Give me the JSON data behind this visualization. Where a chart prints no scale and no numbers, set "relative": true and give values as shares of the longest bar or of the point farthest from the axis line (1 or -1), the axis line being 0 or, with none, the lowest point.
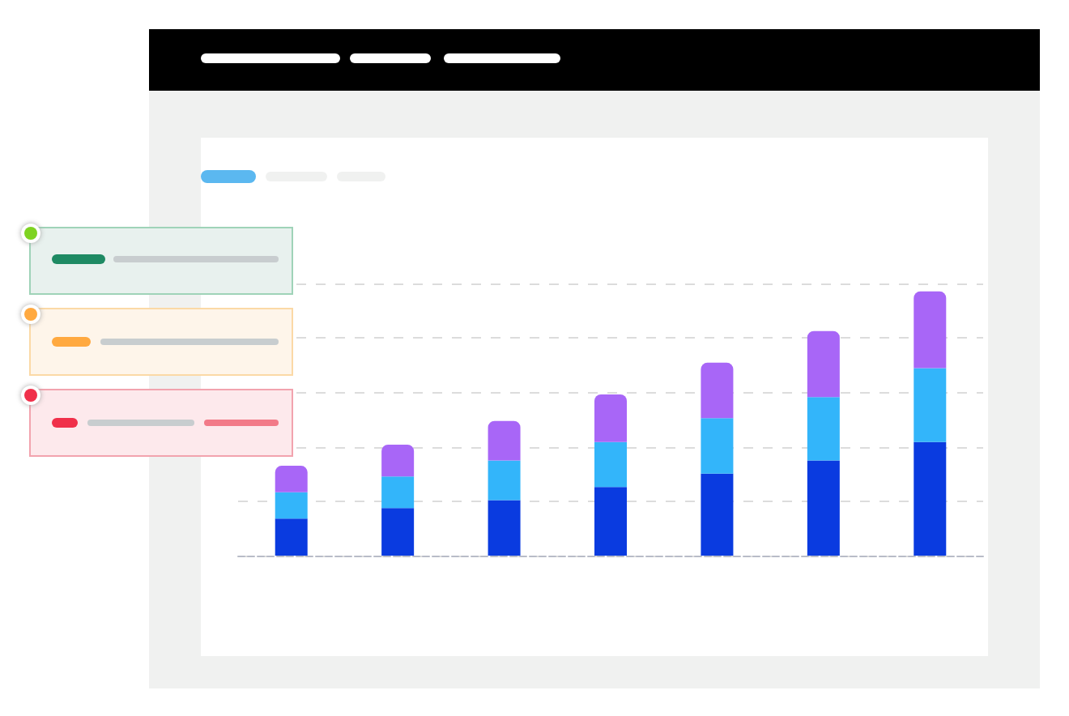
{
  "chart_data": {
    "type": "bar",
    "relative": true,
    "stacked": true,
    "grid": "y",
    "categories": [
      null,
      null,
      null,
      null,
      null,
      null,
      null
    ],
    "series": [
      {
        "color": "#0a3be0",
        "values": [
          0.14,
          0.18,
          0.21,
          0.26,
          0.31,
          0.36,
          0.43
        ]
      },
      {
        "color": "#33b5fa",
        "values": [
          0.1,
          0.12,
          0.15,
          0.17,
          0.21,
          0.24,
          0.28
        ]
      },
      {
        "color": "#a866f7",
        "values": [
          0.1,
          0.12,
          0.15,
          0.18,
          0.21,
          0.25,
          0.29
        ]
      }
    ]
  }
}
